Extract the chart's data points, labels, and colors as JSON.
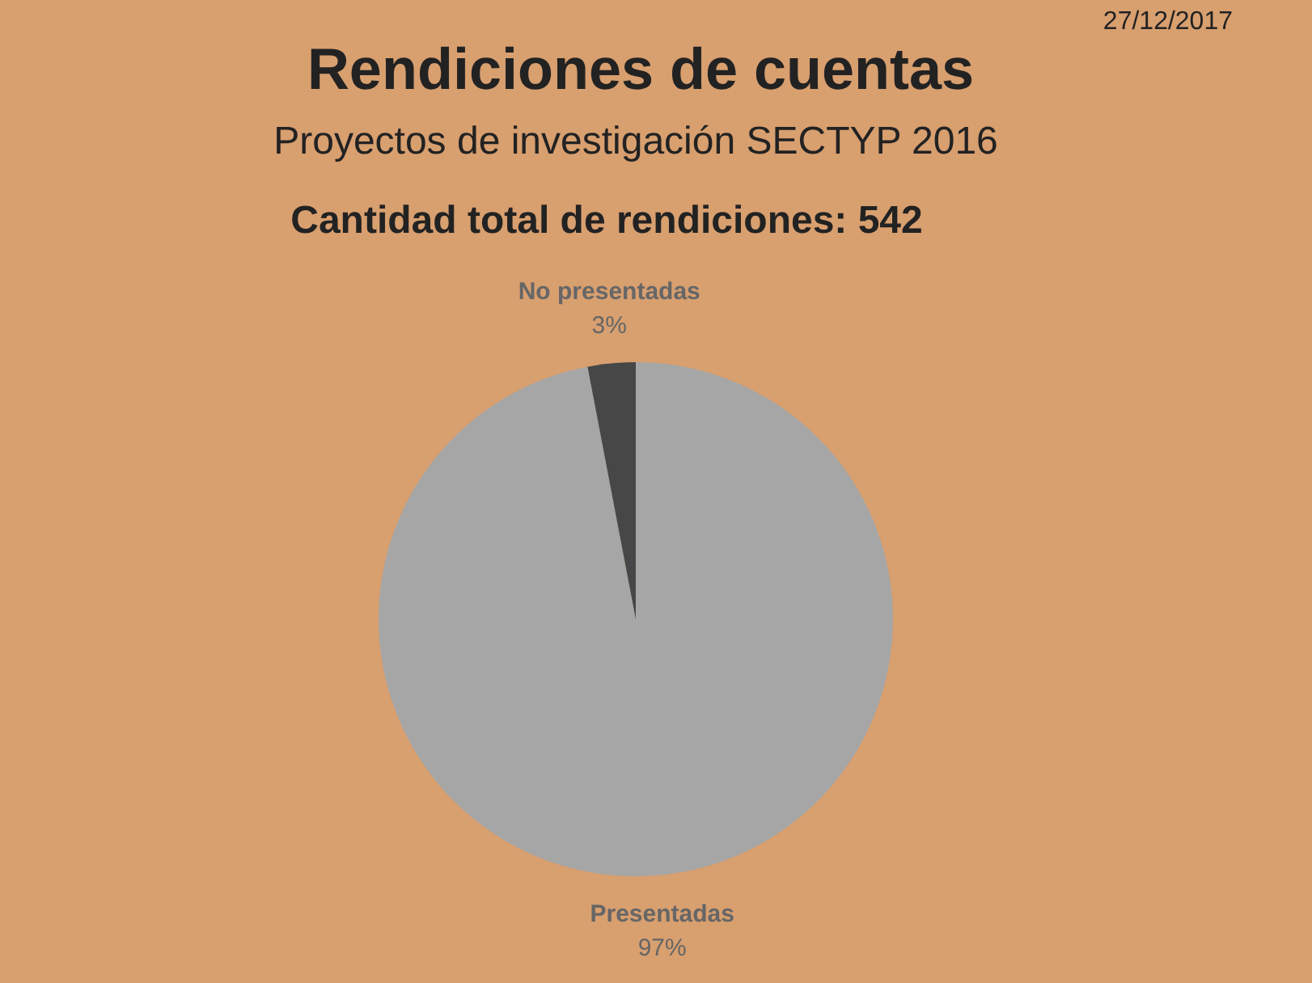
{
  "chart_data": {
    "type": "pie",
    "title": "Rendiciones de cuentas",
    "subtitle": "Proyectos de investigación SECTYP 2016",
    "annotations": [
      "27/12/2017",
      "Cantidad total de rendiciones: 542"
    ],
    "categories": [
      "Presentadas",
      "No presentadas"
    ],
    "values": [
      97,
      3
    ],
    "colors": [
      "#a6a6a6",
      "#474747"
    ],
    "value_labels": [
      "97%",
      "3%"
    ]
  }
}
